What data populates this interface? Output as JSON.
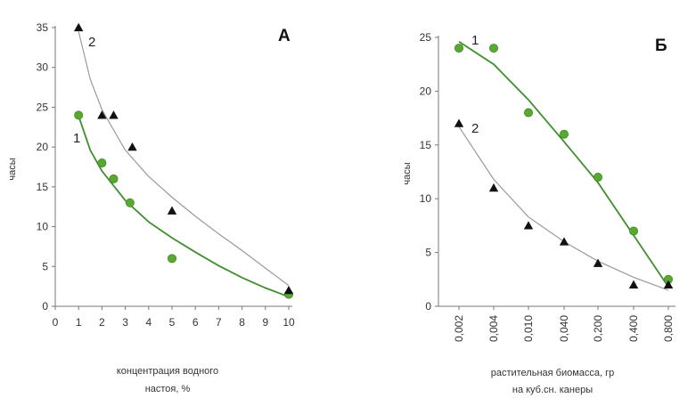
{
  "chart_data": [
    {
      "type": "scatter",
      "panel_label": "А",
      "ylabel": "часы",
      "xlabel_lines": [
        "концентрация водного",
        "настоя, %"
      ],
      "xlim": [
        0,
        10
      ],
      "ylim": [
        0,
        35
      ],
      "x_ticks": [
        0,
        1,
        2,
        3,
        4,
        5,
        6,
        7,
        8,
        9,
        10
      ],
      "y_ticks": [
        0,
        5,
        10,
        15,
        20,
        25,
        30,
        35
      ],
      "series": [
        {
          "name": "1",
          "marker": "circle",
          "color": "#5aa832",
          "line_color": "#3f8f2f",
          "x": [
            1,
            2,
            2.5,
            3.2,
            5,
            10
          ],
          "y": [
            24,
            18,
            16,
            13,
            6,
            1.5
          ],
          "fit": [
            [
              1,
              23.9
            ],
            [
              1.5,
              19.6
            ],
            [
              2,
              17
            ],
            [
              3,
              13.3
            ],
            [
              4,
              10.6
            ],
            [
              5,
              8.6
            ],
            [
              6,
              6.8
            ],
            [
              7,
              5.1
            ],
            [
              8,
              3.6
            ],
            [
              9,
              2.3
            ],
            [
              10,
              1.2
            ]
          ]
        },
        {
          "name": "2",
          "marker": "triangle",
          "color": "#111111",
          "line_color": "#9a9a9a",
          "x": [
            1,
            2,
            2.5,
            3.3,
            5,
            10
          ],
          "y": [
            35,
            24,
            24,
            20,
            12,
            2
          ],
          "fit": [
            [
              1,
              34.5
            ],
            [
              1.5,
              28.5
            ],
            [
              2,
              24.7
            ],
            [
              3,
              19.6
            ],
            [
              4,
              16.3
            ],
            [
              5,
              13.7
            ],
            [
              6,
              11.3
            ],
            [
              7,
              9.1
            ],
            [
              8,
              7
            ],
            [
              9,
              4.8
            ],
            [
              10,
              2.6
            ]
          ]
        }
      ]
    },
    {
      "type": "scatter",
      "panel_label": "Б",
      "ylabel": "часы",
      "xlabel_lines": [
        "растительная биомасса, гр",
        "на куб.сн. канеры"
      ],
      "categories": [
        "0,002",
        "0,004",
        "0,010",
        "0,040",
        "0,200",
        "0,400",
        "0,800"
      ],
      "ylim": [
        0,
        25
      ],
      "y_ticks": [
        0,
        5,
        10,
        15,
        20,
        25
      ],
      "series": [
        {
          "name": "1",
          "marker": "circle",
          "color": "#5aa832",
          "line_color": "#3f8f2f",
          "values": [
            24,
            24,
            18,
            16,
            12,
            7,
            2.5
          ],
          "fit": [
            24.6,
            22.5,
            19.2,
            15.3,
            11.5,
            6.6,
            1.8
          ]
        },
        {
          "name": "2",
          "marker": "triangle",
          "color": "#111111",
          "line_color": "#9a9a9a",
          "values": [
            17,
            11,
            7.5,
            6,
            4,
            2,
            2
          ],
          "fit": [
            16.7,
            11.8,
            8.3,
            6,
            4.2,
            2.7,
            1.5
          ]
        }
      ]
    }
  ]
}
